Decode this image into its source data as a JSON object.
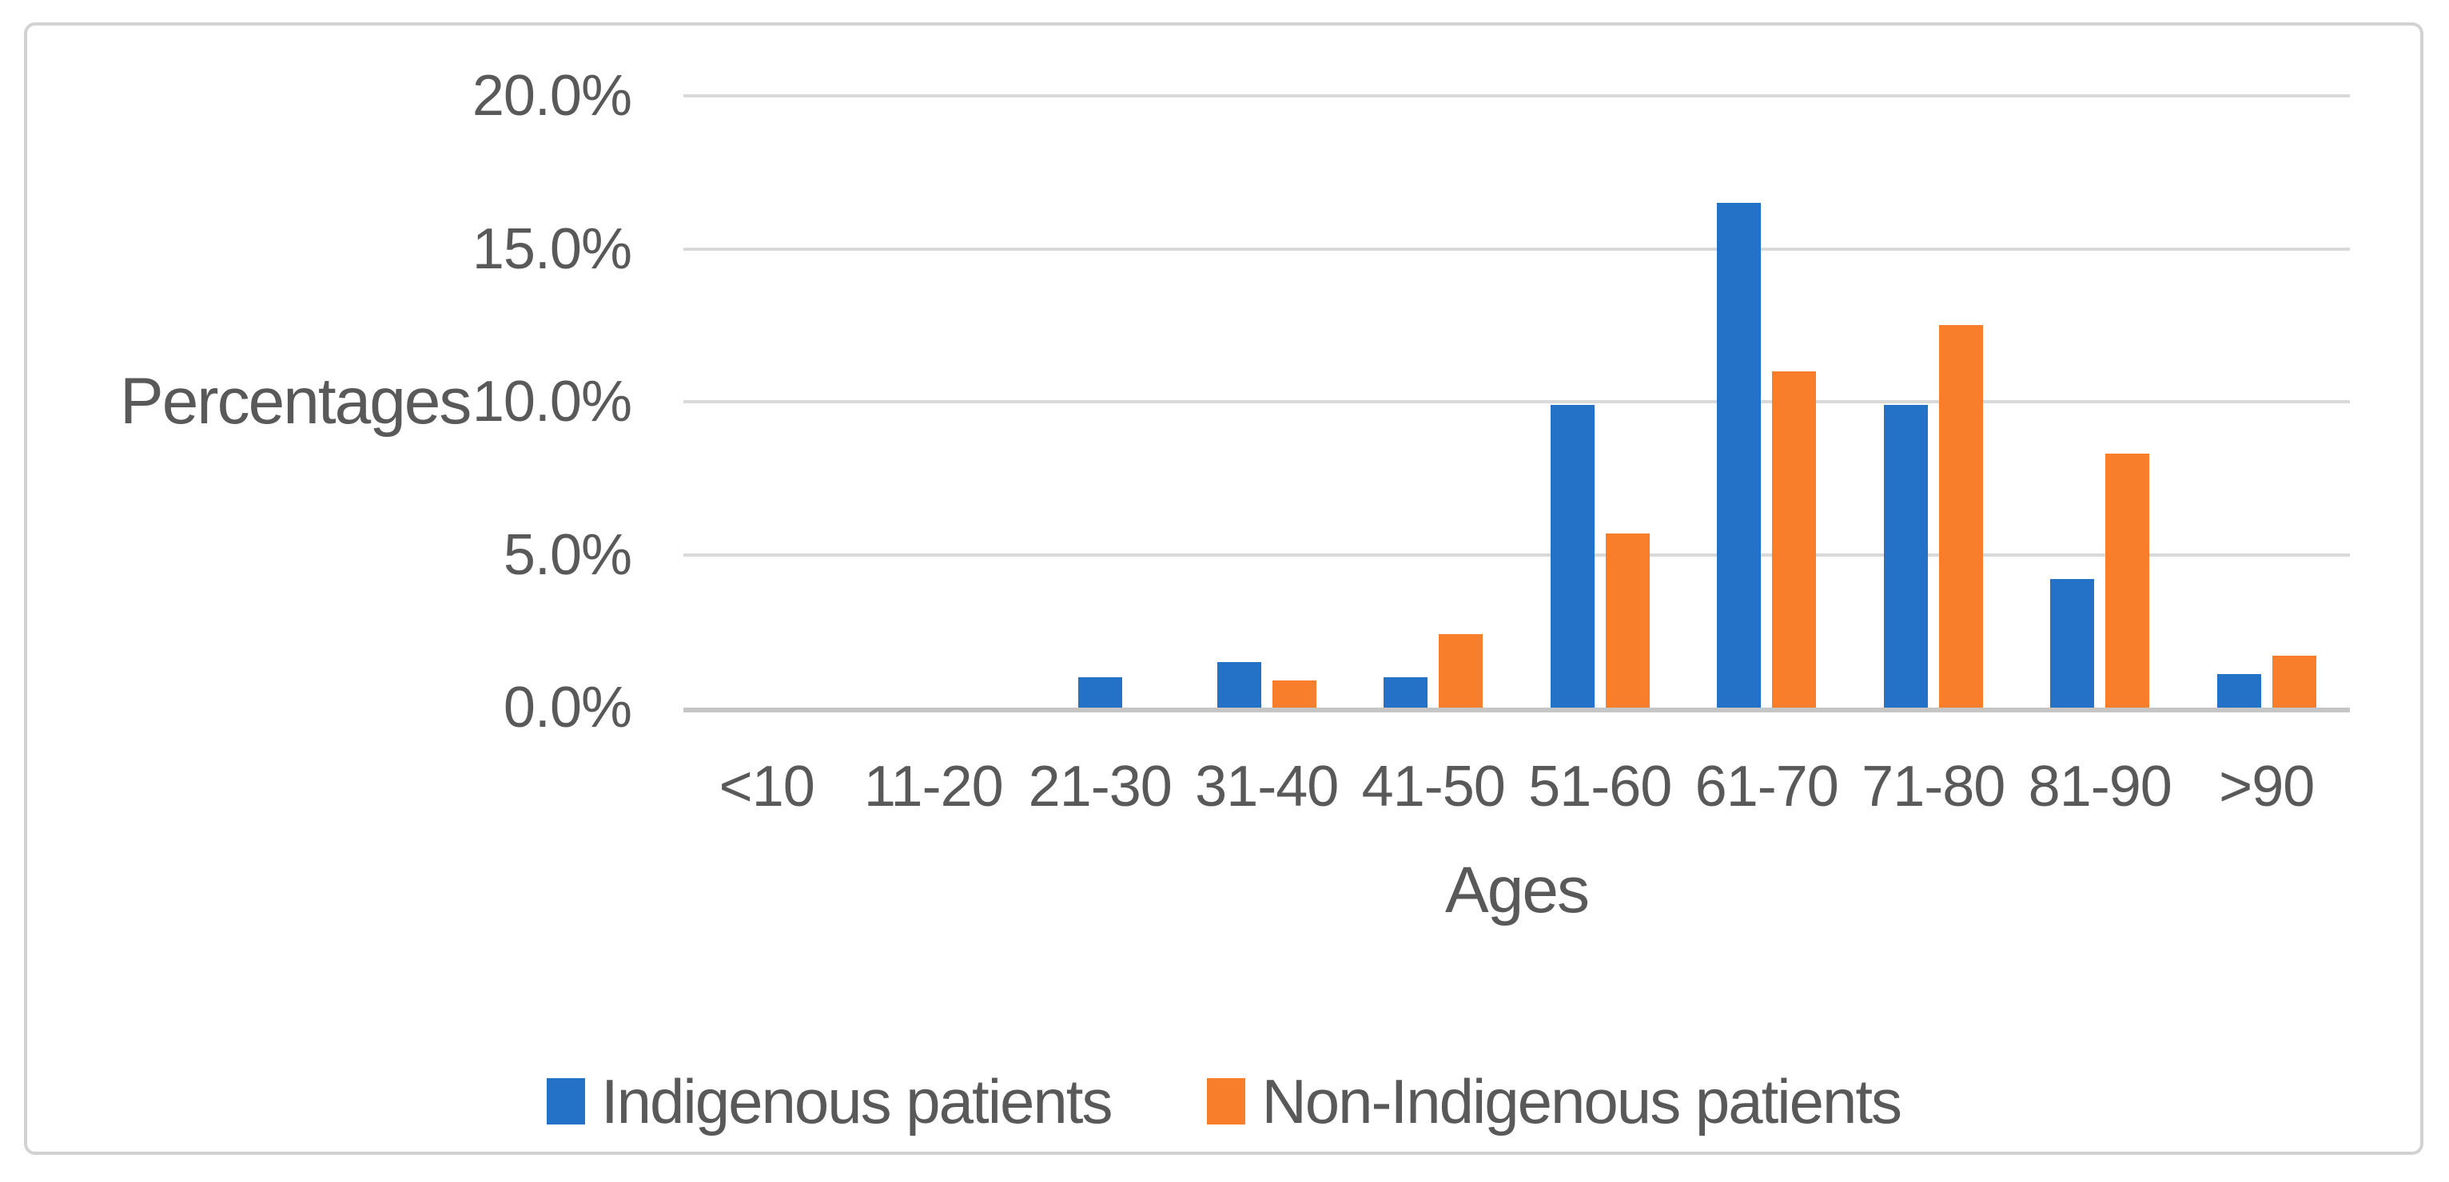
{
  "figure": {
    "kind": "clustered-column-chart-figure",
    "background": "#ffffff",
    "frame_border_color": "#D2D2D2"
  },
  "colors": {
    "series_blue": "#2372C8",
    "series_orange": "#F97E2B",
    "text_gray": "#595959",
    "gridline": "#D9D9D9",
    "axis_line": "#C5C5C5"
  },
  "chart_data": {
    "type": "bar",
    "title": "",
    "categories": [
      "<10",
      "11-20",
      "21-30",
      "31-40",
      "41-50",
      "51-60",
      "61-70",
      "71-80",
      "81-90",
      ">90"
    ],
    "series": [
      {
        "name": "Indigenous patients",
        "color": "#2372C8",
        "values": [
          0,
          0,
          1.0,
          1.5,
          1.0,
          9.9,
          16.5,
          9.9,
          4.2,
          1.1
        ]
      },
      {
        "name": "Non-Indigenous patients",
        "color": "#F97E2B",
        "values": [
          0,
          0,
          0,
          0.9,
          2.4,
          5.7,
          11.0,
          12.5,
          8.3,
          1.7
        ]
      }
    ],
    "xlabel": "Ages",
    "ylabel": "Percentages",
    "ylim": [
      0,
      20
    ],
    "ytick_interval": 5,
    "yticks": [
      "20.0%",
      "15.0%",
      "10.0%",
      "5.0%",
      "0.0%"
    ],
    "grid": "horizontal-only",
    "legend_position": "bottom-center"
  }
}
